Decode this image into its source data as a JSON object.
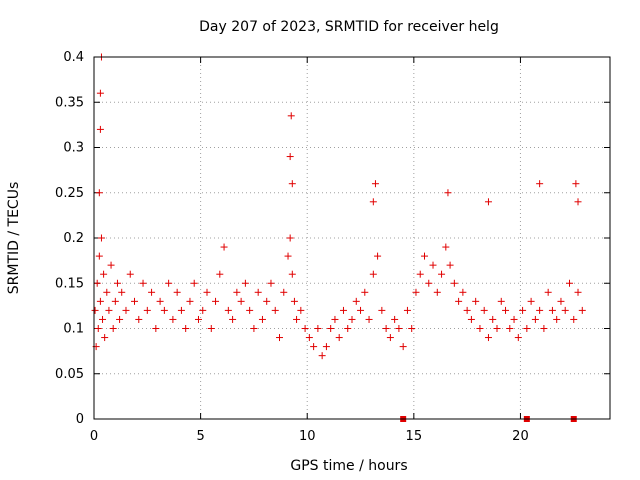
{
  "chart_data": {
    "type": "scatter",
    "title": "Day 207 of 2023, SRMTID for receiver helg",
    "xlabel": "GPS time / hours",
    "ylabel": "SRMTID / TECUs",
    "xlim": [
      0,
      24.2
    ],
    "ylim": [
      0,
      0.4
    ],
    "xticks": [
      0,
      5,
      10,
      15,
      20
    ],
    "yticks": [
      0,
      0.05,
      0.1,
      0.15,
      0.2,
      0.25,
      0.3,
      0.35,
      0.4
    ],
    "xtick_labels": [
      "0",
      "5",
      "10",
      "15",
      "20"
    ],
    "ytick_labels": [
      "0",
      "0.05",
      "0.1",
      "0.15",
      "0.2",
      "0.25",
      "0.3",
      "0.35",
      "0.4"
    ],
    "marker": "+",
    "color": "#e00000",
    "grid": true,
    "series": [
      {
        "name": "SRMTID",
        "x": [
          0.05,
          0.1,
          0.15,
          0.2,
          0.25,
          0.3,
          0.35,
          0.4,
          0.45,
          0.5,
          0.6,
          0.7,
          0.8,
          0.9,
          1.0,
          1.1,
          1.2,
          1.3,
          1.5,
          1.7,
          1.9,
          2.1,
          2.3,
          2.5,
          2.7,
          2.9,
          3.1,
          3.3,
          3.5,
          3.7,
          3.9,
          4.1,
          4.3,
          4.5,
          4.7,
          4.9,
          5.1,
          5.3,
          5.5,
          5.7,
          5.9,
          6.1,
          6.3,
          6.5,
          6.7,
          6.9,
          7.1,
          7.3,
          7.5,
          7.7,
          7.9,
          8.1,
          8.3,
          8.5,
          8.7,
          8.9,
          9.1,
          9.2,
          9.3,
          9.4,
          9.5,
          9.7,
          9.9,
          10.1,
          10.3,
          10.5,
          10.7,
          10.9,
          11.1,
          11.3,
          11.5,
          11.7,
          11.9,
          12.1,
          12.3,
          12.5,
          12.7,
          12.9,
          13.1,
          13.3,
          13.5,
          13.7,
          13.9,
          14.1,
          14.3,
          14.5,
          14.7,
          14.9,
          15.1,
          15.3,
          15.5,
          15.7,
          15.9,
          16.1,
          16.3,
          16.5,
          16.7,
          16.9,
          17.1,
          17.3,
          17.5,
          17.7,
          17.9,
          18.1,
          18.3,
          18.5,
          18.7,
          18.9,
          19.1,
          19.3,
          19.5,
          19.7,
          19.9,
          20.1,
          20.3,
          20.5,
          20.7,
          20.9,
          21.1,
          21.3,
          21.5,
          21.7,
          21.9,
          22.1,
          22.3,
          22.5,
          22.7,
          22.9,
          0.3,
          0.3,
          0.35,
          0.25,
          9.2,
          9.25,
          9.3,
          13.1,
          13.2,
          16.6,
          18.5,
          20.9,
          22.6,
          22.7
        ],
        "y": [
          0.12,
          0.08,
          0.15,
          0.1,
          0.18,
          0.13,
          0.2,
          0.11,
          0.16,
          0.09,
          0.14,
          0.12,
          0.17,
          0.1,
          0.13,
          0.15,
          0.11,
          0.14,
          0.12,
          0.16,
          0.13,
          0.11,
          0.15,
          0.12,
          0.14,
          0.1,
          0.13,
          0.12,
          0.15,
          0.11,
          0.14,
          0.12,
          0.1,
          0.13,
          0.15,
          0.11,
          0.12,
          0.14,
          0.1,
          0.13,
          0.16,
          0.19,
          0.12,
          0.11,
          0.14,
          0.13,
          0.15,
          0.12,
          0.1,
          0.14,
          0.11,
          0.13,
          0.15,
          0.12,
          0.09,
          0.14,
          0.18,
          0.2,
          0.16,
          0.13,
          0.11,
          0.12,
          0.1,
          0.09,
          0.08,
          0.1,
          0.07,
          0.08,
          0.1,
          0.11,
          0.09,
          0.12,
          0.1,
          0.11,
          0.13,
          0.12,
          0.14,
          0.11,
          0.16,
          0.18,
          0.12,
          0.1,
          0.09,
          0.11,
          0.1,
          0.08,
          0.12,
          0.1,
          0.14,
          0.16,
          0.18,
          0.15,
          0.17,
          0.14,
          0.16,
          0.19,
          0.17,
          0.15,
          0.13,
          0.14,
          0.12,
          0.11,
          0.13,
          0.1,
          0.12,
          0.09,
          0.11,
          0.1,
          0.13,
          0.12,
          0.1,
          0.11,
          0.09,
          0.12,
          0.1,
          0.13,
          0.11,
          0.12,
          0.1,
          0.14,
          0.12,
          0.11,
          0.13,
          0.12,
          0.15,
          0.11,
          0.14,
          0.12,
          0.32,
          0.36,
          0.4,
          0.25,
          0.29,
          0.335,
          0.26,
          0.24,
          0.26,
          0.25,
          0.24,
          0.26,
          0.26,
          0.24
        ]
      }
    ],
    "data_gaps_x": [
      14.5,
      20.3,
      22.5
    ]
  }
}
